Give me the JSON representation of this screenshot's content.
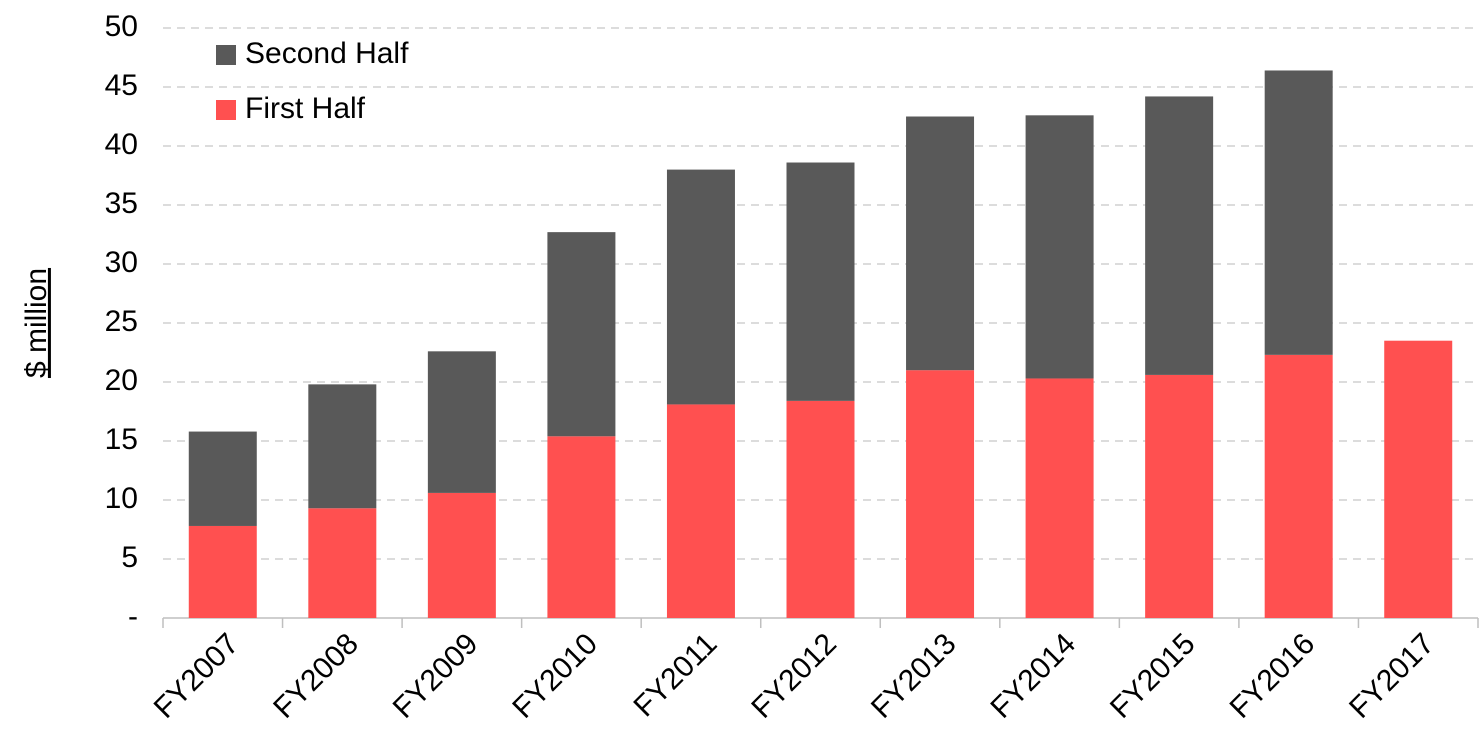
{
  "chart_data": {
    "type": "stacked_bar",
    "ylabel": "$ million",
    "categories": [
      "FY2007",
      "FY2008",
      "FY2009",
      "FY2010",
      "FY2011",
      "FY2012",
      "FY2013",
      "FY2014",
      "FY2015",
      "FY2016",
      "FY2017"
    ],
    "series": [
      {
        "name": "First Half",
        "color": "#ff5050",
        "values": [
          7.8,
          9.3,
          10.6,
          15.4,
          18.1,
          18.4,
          21.0,
          20.3,
          20.6,
          22.3,
          23.5
        ]
      },
      {
        "name": "Second Half",
        "color": "#595959",
        "values": [
          8.0,
          10.5,
          12.0,
          17.3,
          19.9,
          20.2,
          21.5,
          22.3,
          23.6,
          24.1,
          null
        ]
      }
    ],
    "ylim": [
      0,
      50
    ],
    "yticks": [
      {
        "value": 0,
        "label": "-"
      },
      5,
      10,
      15,
      20,
      25,
      30,
      35,
      40,
      45,
      50
    ],
    "grid": true,
    "legend": "top-left"
  }
}
